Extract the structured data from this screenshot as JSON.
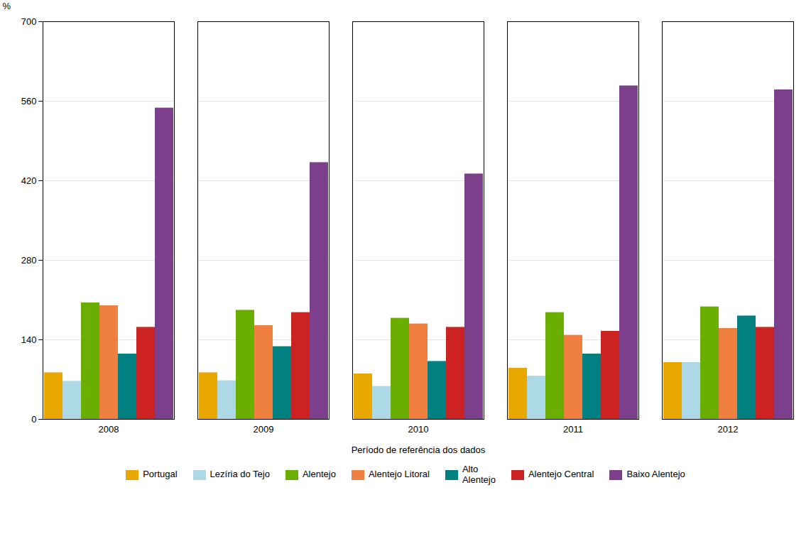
{
  "chart_data": {
    "type": "bar",
    "xlabel": "Período de referência dos dados",
    "ylabel": "%",
    "categories": [
      "2008",
      "2009",
      "2010",
      "2011",
      "2012"
    ],
    "series": [
      {
        "name": "Portugal",
        "color": "#E8A800",
        "values": [
          82,
          82,
          80,
          90,
          100
        ]
      },
      {
        "name": "Lezíria do Tejo",
        "color": "#ADD8E6",
        "values": [
          67,
          68,
          58,
          76,
          100
        ]
      },
      {
        "name": "Alentejo",
        "color": "#6AAF00",
        "values": [
          205,
          192,
          178,
          188,
          198
        ]
      },
      {
        "name": "Alentejo Litoral",
        "color": "#F08040",
        "values": [
          200,
          165,
          168,
          148,
          160
        ]
      },
      {
        "name": "Alto\nAlentejo",
        "color": "#008080",
        "values": [
          115,
          128,
          102,
          115,
          182
        ]
      },
      {
        "name": "Alentejo Central",
        "color": "#CC2222",
        "values": [
          162,
          188,
          162,
          155,
          162
        ]
      },
      {
        "name": "Baixo Alentejo",
        "color": "#7B3F8C",
        "values": [
          548,
          452,
          432,
          587,
          580
        ]
      }
    ],
    "ylim": [
      0,
      700
    ],
    "yticks": [
      0,
      140,
      280,
      420,
      560,
      700
    ],
    "grid": true,
    "legend": "bottom"
  }
}
